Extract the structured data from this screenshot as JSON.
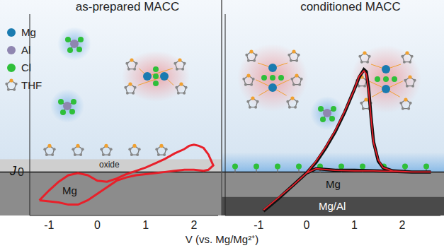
{
  "atom_legend": [
    {
      "label": "Mg",
      "color": "#1a7bb0"
    },
    {
      "label": "Al",
      "color": "#8f86b0"
    },
    {
      "label": "Cl",
      "color": "#2fbf3a"
    },
    {
      "label": "THF",
      "color": "#f0a030"
    }
  ],
  "axis_label": "V (vs. Mg/Mg²⁺)",
  "ground_labels": {
    "left": [
      "oxide",
      "Mg"
    ],
    "right": [
      "Mg",
      "Mg/Al"
    ]
  },
  "chart_data": [
    {
      "type": "line",
      "title": "as-prepared MACC",
      "ylabel": "J",
      "xlim": [
        -1.4,
        2.5
      ],
      "xticks": [
        -1,
        0,
        1,
        2
      ],
      "ylim": [
        -4,
        14.5
      ],
      "yticks": [
        0
      ],
      "grid": false,
      "series": [
        {
          "color": "#e8202a",
          "x": [
            -1.2,
            -1.0,
            -0.8,
            -0.6,
            -0.4,
            -0.2,
            0,
            0.2,
            0.4,
            0.6,
            0.8,
            1.0,
            1.2,
            1.4,
            1.6,
            1.8,
            1.9,
            2.0,
            2.1,
            2.2,
            2.3,
            2.4,
            2.3,
            2.2,
            2.0,
            1.8,
            1.6,
            1.4,
            1.2,
            1.0,
            0.8,
            0.6,
            0.4,
            0.2,
            0,
            -0.2,
            -0.4,
            -0.6,
            -0.8,
            -1.0,
            -1.2
          ],
          "values": [
            -2.6,
            -1.7,
            -0.9,
            -0.3,
            -0.1,
            -0.3,
            -0.8,
            -0.9,
            -0.6,
            -0.2,
            0.1,
            0.4,
            0.8,
            1.2,
            1.7,
            2.1,
            2.4,
            2.5,
            2.4,
            2.2,
            1.6,
            0.6,
            0.2,
            0.1,
            0.2,
            0.2,
            0.1,
            0.0,
            -0.1,
            -0.2,
            -0.3,
            -0.5,
            -0.8,
            -1.4,
            -2.0,
            -2.6,
            -3.0,
            -3.0,
            -2.8,
            -2.7,
            -2.6
          ]
        }
      ]
    },
    {
      "type": "line",
      "title": "conditioned MACC",
      "xlim": [
        -1.7,
        2.8
      ],
      "xticks": [
        -1,
        0,
        1,
        2
      ],
      "ylim": [
        -4,
        14.5
      ],
      "yticks": [
        0
      ],
      "grid": false,
      "tick_labels": "x",
      "series": [
        {
          "color": "#111111",
          "x": [
            -0.9,
            -0.6,
            -0.3,
            0,
            0.2,
            0.4,
            0.6,
            0.8,
            1.0,
            1.1,
            1.2,
            1.25,
            1.3,
            1.35,
            1.4,
            1.5,
            1.6,
            1.8,
            2.2,
            2.6,
            2.2,
            1.8,
            1.4,
            1.0,
            0.6,
            0.2,
            0,
            -0.3,
            -0.6,
            -0.9
          ],
          "values": [
            -3.6,
            -2.5,
            -1.3,
            -0.1,
            0.9,
            2.2,
            3.7,
            5.5,
            7.6,
            8.7,
            9.4,
            9.2,
            7.6,
            5.0,
            2.8,
            1.0,
            0.4,
            0.1,
            0.0,
            0.0,
            0.0,
            0.05,
            0.1,
            0.15,
            0.15,
            0.3,
            -0.1,
            -1.3,
            -2.5,
            -3.6
          ]
        },
        {
          "color": "#e8202a",
          "x": [
            -0.9,
            -0.6,
            -0.3,
            0,
            0.2,
            0.4,
            0.6,
            0.8,
            1.0,
            1.1,
            1.2,
            1.25,
            1.3,
            1.35,
            1.4,
            1.5,
            1.6,
            1.8,
            2.2,
            2.6,
            2.2,
            1.8,
            1.4,
            1.0,
            0.6,
            0.2,
            0,
            -0.3,
            -0.6,
            -0.9
          ],
          "values": [
            -3.5,
            -2.4,
            -1.3,
            -0.1,
            1.0,
            2.3,
            3.8,
            5.6,
            7.6,
            8.8,
            9.3,
            9.0,
            7.4,
            4.9,
            2.7,
            1.1,
            0.4,
            0.1,
            0.0,
            0.0,
            0.0,
            0.05,
            0.1,
            0.1,
            0.15,
            0.3,
            -0.1,
            -1.3,
            -2.4,
            -3.5
          ]
        }
      ]
    }
  ]
}
